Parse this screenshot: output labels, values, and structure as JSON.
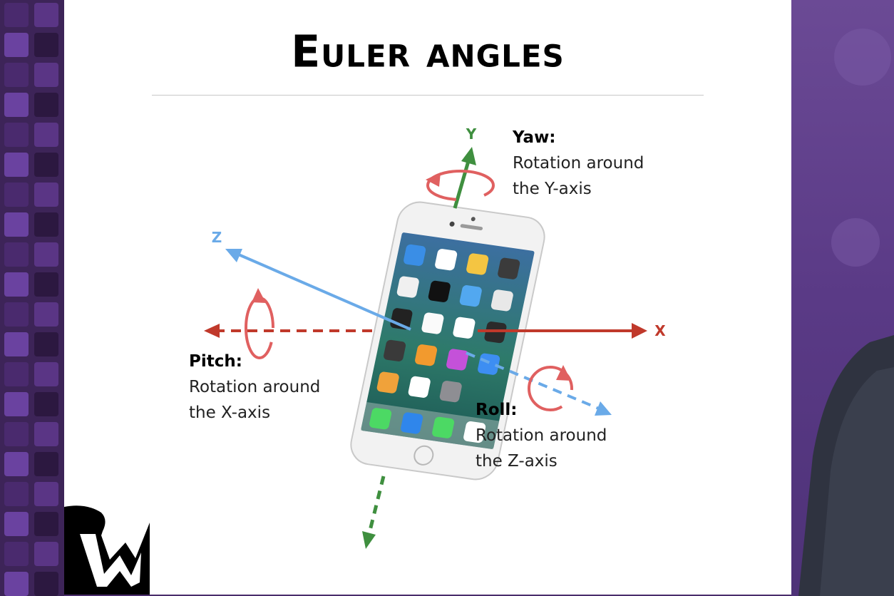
{
  "slide": {
    "title": "Euler angles"
  },
  "axes": {
    "x": {
      "letter": "X",
      "color": "#c0392b"
    },
    "y": {
      "letter": "Y",
      "color": "#3f8f3f"
    },
    "z": {
      "letter": "Z",
      "color": "#6aaae8"
    }
  },
  "rotation_arrow_color": "#e06060",
  "labels": {
    "yaw": {
      "title": "Yaw:",
      "line1": "Rotation around",
      "line2": "the Y-axis"
    },
    "pitch": {
      "title": "Pitch:",
      "line1": "Rotation around",
      "line2": "the X-axis"
    },
    "roll": {
      "title": "Roll:",
      "line1": "Rotation around",
      "line2": "the Z-axis"
    }
  },
  "phone": {
    "device": "iPhone",
    "color": "#f2f2f2"
  }
}
